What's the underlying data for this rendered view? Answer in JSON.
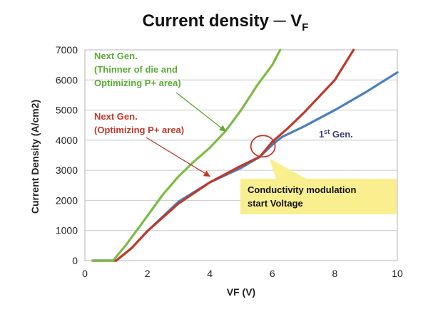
{
  "chart_data": {
    "type": "line",
    "title": {
      "main": "Current density  ─  V",
      "subscript": "F"
    },
    "xlabel": "VF (V)",
    "ylabel": "Current Density (A/cm2)",
    "xlim": [
      0,
      10
    ],
    "ylim": [
      0,
      7000
    ],
    "xticks": [
      0,
      2,
      4,
      6,
      8,
      10
    ],
    "yticks": [
      0,
      1000,
      2000,
      3000,
      4000,
      5000,
      6000,
      7000
    ],
    "grid": "horizontal",
    "series": [
      {
        "name": "1st Gen.",
        "color": "#4a7fc1",
        "points": [
          [
            0.25,
            0
          ],
          [
            1.0,
            0
          ],
          [
            1.5,
            420
          ],
          [
            2.0,
            980
          ],
          [
            3.0,
            1960
          ],
          [
            4.0,
            2600
          ],
          [
            5.0,
            3080
          ],
          [
            5.6,
            3450
          ],
          [
            6.0,
            3850
          ],
          [
            6.3,
            4100
          ],
          [
            7.0,
            4450
          ],
          [
            8.0,
            5000
          ],
          [
            9.0,
            5600
          ],
          [
            10.0,
            6250
          ]
        ]
      },
      {
        "name": "Next Gen. (Optimizing P+ area)",
        "color": "#c0392b",
        "points": [
          [
            0.25,
            0
          ],
          [
            1.0,
            0
          ],
          [
            1.5,
            420
          ],
          [
            2.0,
            980
          ],
          [
            3.0,
            1900
          ],
          [
            4.0,
            2600
          ],
          [
            5.0,
            3150
          ],
          [
            5.6,
            3450
          ],
          [
            6.0,
            3950
          ],
          [
            6.5,
            4400
          ],
          [
            7.0,
            4900
          ],
          [
            8.0,
            6000
          ],
          [
            8.6,
            7000
          ]
        ]
      },
      {
        "name": "Next Gen. (Thinner of die and Optimizing P+ area)",
        "color": "#7dbb42",
        "points": [
          [
            0.25,
            0
          ],
          [
            0.9,
            0
          ],
          [
            1.3,
            500
          ],
          [
            1.8,
            1200
          ],
          [
            2.5,
            2200
          ],
          [
            3.0,
            2800
          ],
          [
            3.5,
            3300
          ],
          [
            4.0,
            3750
          ],
          [
            4.5,
            4300
          ],
          [
            5.0,
            5000
          ],
          [
            5.5,
            5800
          ],
          [
            6.0,
            6500
          ],
          [
            6.25,
            7000
          ]
        ]
      }
    ],
    "annotations": [
      {
        "id": "green",
        "lines": [
          "Next Gen.",
          "(Thinner of die and",
          "Optimizing P+ area)"
        ],
        "color": "#5aab35",
        "arrow_to": [
          4.5,
          4300
        ]
      },
      {
        "id": "red",
        "lines": [
          "Next Gen.",
          "(Optimizing P+ area)"
        ],
        "color": "#c0392b",
        "arrow_to": [
          4.0,
          2800
        ]
      },
      {
        "id": "blue",
        "label": "Gen.",
        "superscript_prefix": "1",
        "superscript": "st",
        "color": "#3a3a8c"
      }
    ],
    "highlight": {
      "center": [
        5.7,
        3800
      ],
      "color": "#c0392b"
    },
    "callout": {
      "lines": [
        "Conductivity modulation",
        "start Voltage"
      ],
      "fill": "#faef8f",
      "tail": [
        5.9,
        3400
      ]
    }
  }
}
